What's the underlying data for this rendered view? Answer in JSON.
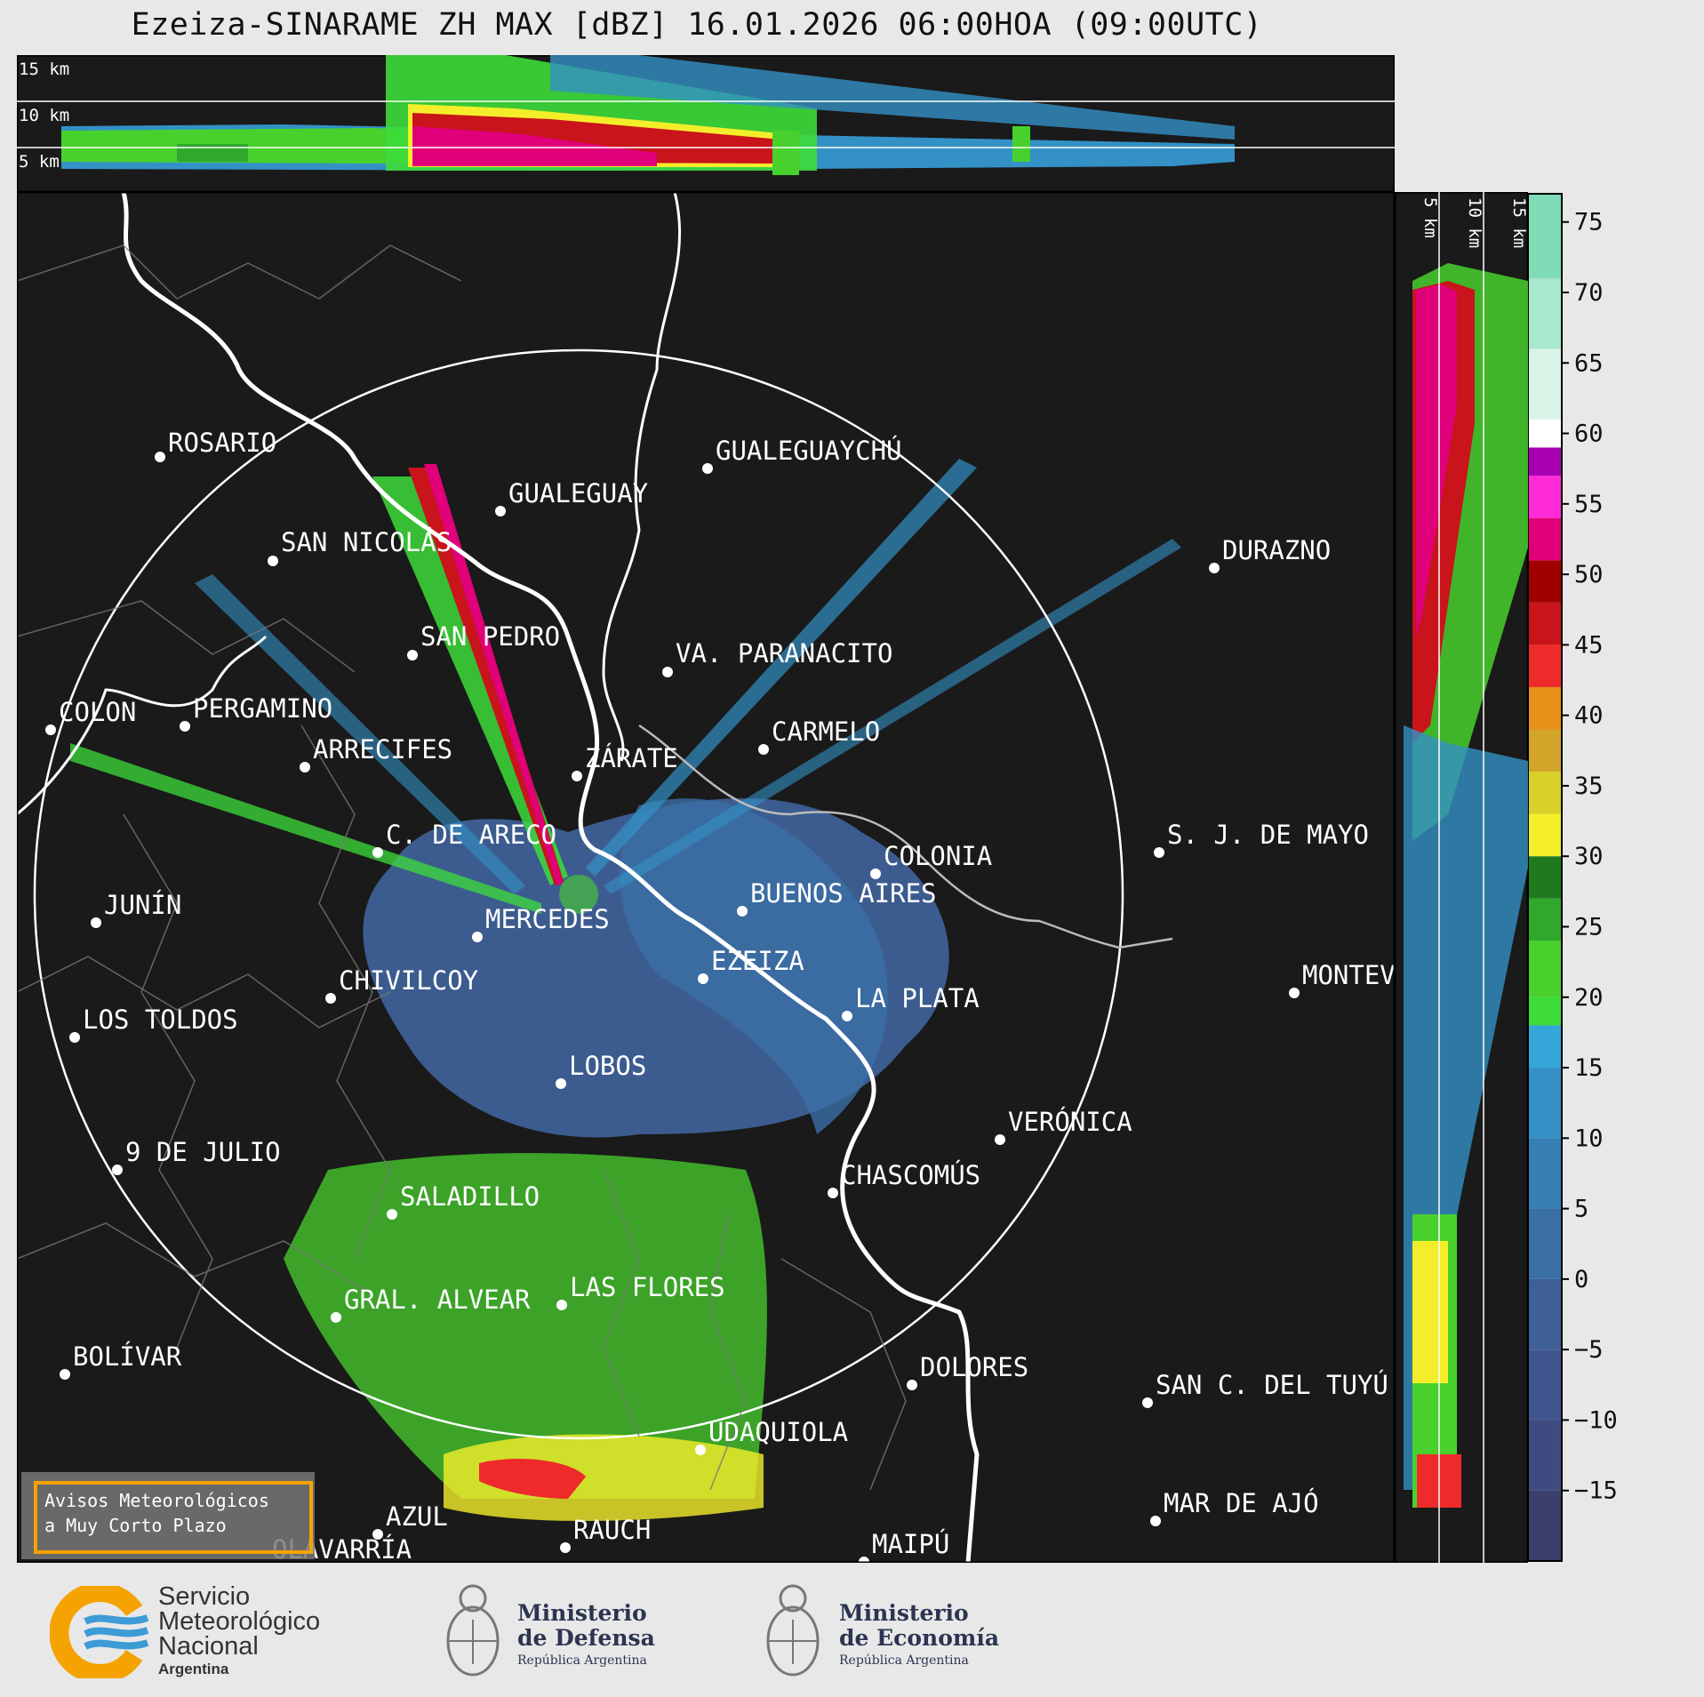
{
  "title": "Ezeiza-SINARAME ZH MAX [dBZ] 16.01.2026 06:00HOA (09:00UTC)",
  "top_panel": {
    "height_labels": [
      "15 km",
      "10 km",
      "5 km"
    ]
  },
  "side_panel": {
    "height_labels": [
      "5 km",
      "10 km",
      "15 km"
    ]
  },
  "colorbar": {
    "unit": "dBZ",
    "ticks": [
      "75",
      "70",
      "65",
      "60",
      "55",
      "50",
      "45",
      "40",
      "35",
      "30",
      "25",
      "20",
      "15",
      "10",
      "5",
      "0",
      "−5",
      "−10",
      "−15"
    ],
    "range": [
      -20,
      77
    ],
    "stops": [
      {
        "from": -20,
        "to": -15,
        "color": "#3a3f6b"
      },
      {
        "from": -15,
        "to": -10,
        "color": "#3f4b80"
      },
      {
        "from": -10,
        "to": -5,
        "color": "#41568f"
      },
      {
        "from": -5,
        "to": 0,
        "color": "#3e6096"
      },
      {
        "from": 0,
        "to": 5,
        "color": "#3a6fa5"
      },
      {
        "from": 5,
        "to": 10,
        "color": "#367fb3"
      },
      {
        "from": 10,
        "to": 15,
        "color": "#3391c6"
      },
      {
        "from": 15,
        "to": 18,
        "color": "#35a6d8"
      },
      {
        "from": 18,
        "to": 20,
        "color": "#3ddc3a"
      },
      {
        "from": 20,
        "to": 24,
        "color": "#48d12d"
      },
      {
        "from": 24,
        "to": 27,
        "color": "#2fa82c"
      },
      {
        "from": 27,
        "to": 30,
        "color": "#1f7a1e"
      },
      {
        "from": 30,
        "to": 33,
        "color": "#f4ee2a"
      },
      {
        "from": 33,
        "to": 36,
        "color": "#d9d02a"
      },
      {
        "from": 36,
        "to": 39,
        "color": "#d2a52a"
      },
      {
        "from": 39,
        "to": 42,
        "color": "#e7901a"
      },
      {
        "from": 42,
        "to": 45,
        "color": "#ef2a2a"
      },
      {
        "from": 45,
        "to": 48,
        "color": "#c8141a"
      },
      {
        "from": 48,
        "to": 51,
        "color": "#a00000"
      },
      {
        "from": 51,
        "to": 54,
        "color": "#e0007a"
      },
      {
        "from": 54,
        "to": 57,
        "color": "#ff2ad8"
      },
      {
        "from": 57,
        "to": 59,
        "color": "#a600b0"
      },
      {
        "from": 59,
        "to": 61,
        "color": "#ffffff"
      },
      {
        "from": 61,
        "to": 66,
        "color": "#d9f3e6"
      },
      {
        "from": 66,
        "to": 71,
        "color": "#a8e8cc"
      },
      {
        "from": 71,
        "to": 77,
        "color": "#7fdcb6"
      }
    ]
  },
  "map": {
    "background": "#1a1a1a",
    "radar_site": "EZEIZA",
    "cities": [
      "ROSARIO",
      "GUALEGUAYCHÚ",
      "GUALEGUAY",
      "SAN NICOLÁS",
      "DURAZNO",
      "SAN PEDRO",
      "VA. PARANACITO",
      "COLON",
      "PERGAMINO",
      "CARMELO",
      "ARRECIFES",
      "ZÁRATE",
      "S. J. DE MAYO",
      "C. DE ARECO",
      "COLONIA",
      "BUENOS AIRES",
      "JUNÍN",
      "MERCEDES",
      "EZEIZA",
      "MONTEV",
      "CHIVILCOY",
      "LA PLATA",
      "LOS TOLDOS",
      "LOBOS",
      "VERÓNICA",
      "9 DE JULIO",
      "CHASCOMÚS",
      "SALADILLO",
      "GRAL. ALVEAR",
      "LAS FLORES",
      "BOLÍVAR",
      "DOLORES",
      "SAN C. DEL TUYÚ",
      "UDAQUIOLA",
      "MAR DE AJÓ",
      "AZUL",
      "RAUCH",
      "OLAVARRÍA",
      "MAIPÚ"
    ]
  },
  "warning": {
    "text": "Avisos Meteorológicos\na Muy Corto Plazo"
  },
  "footer": {
    "smn": {
      "line1": "Servicio",
      "line2": "Meteorológico",
      "line3": "Nacional",
      "line4": "Argentina"
    },
    "defensa": {
      "line1": "Ministerio",
      "line2": "de Defensa",
      "line3": "República Argentina"
    },
    "economia": {
      "line1": "Ministerio",
      "line2": "de Economía",
      "line3": "República Argentina"
    }
  }
}
